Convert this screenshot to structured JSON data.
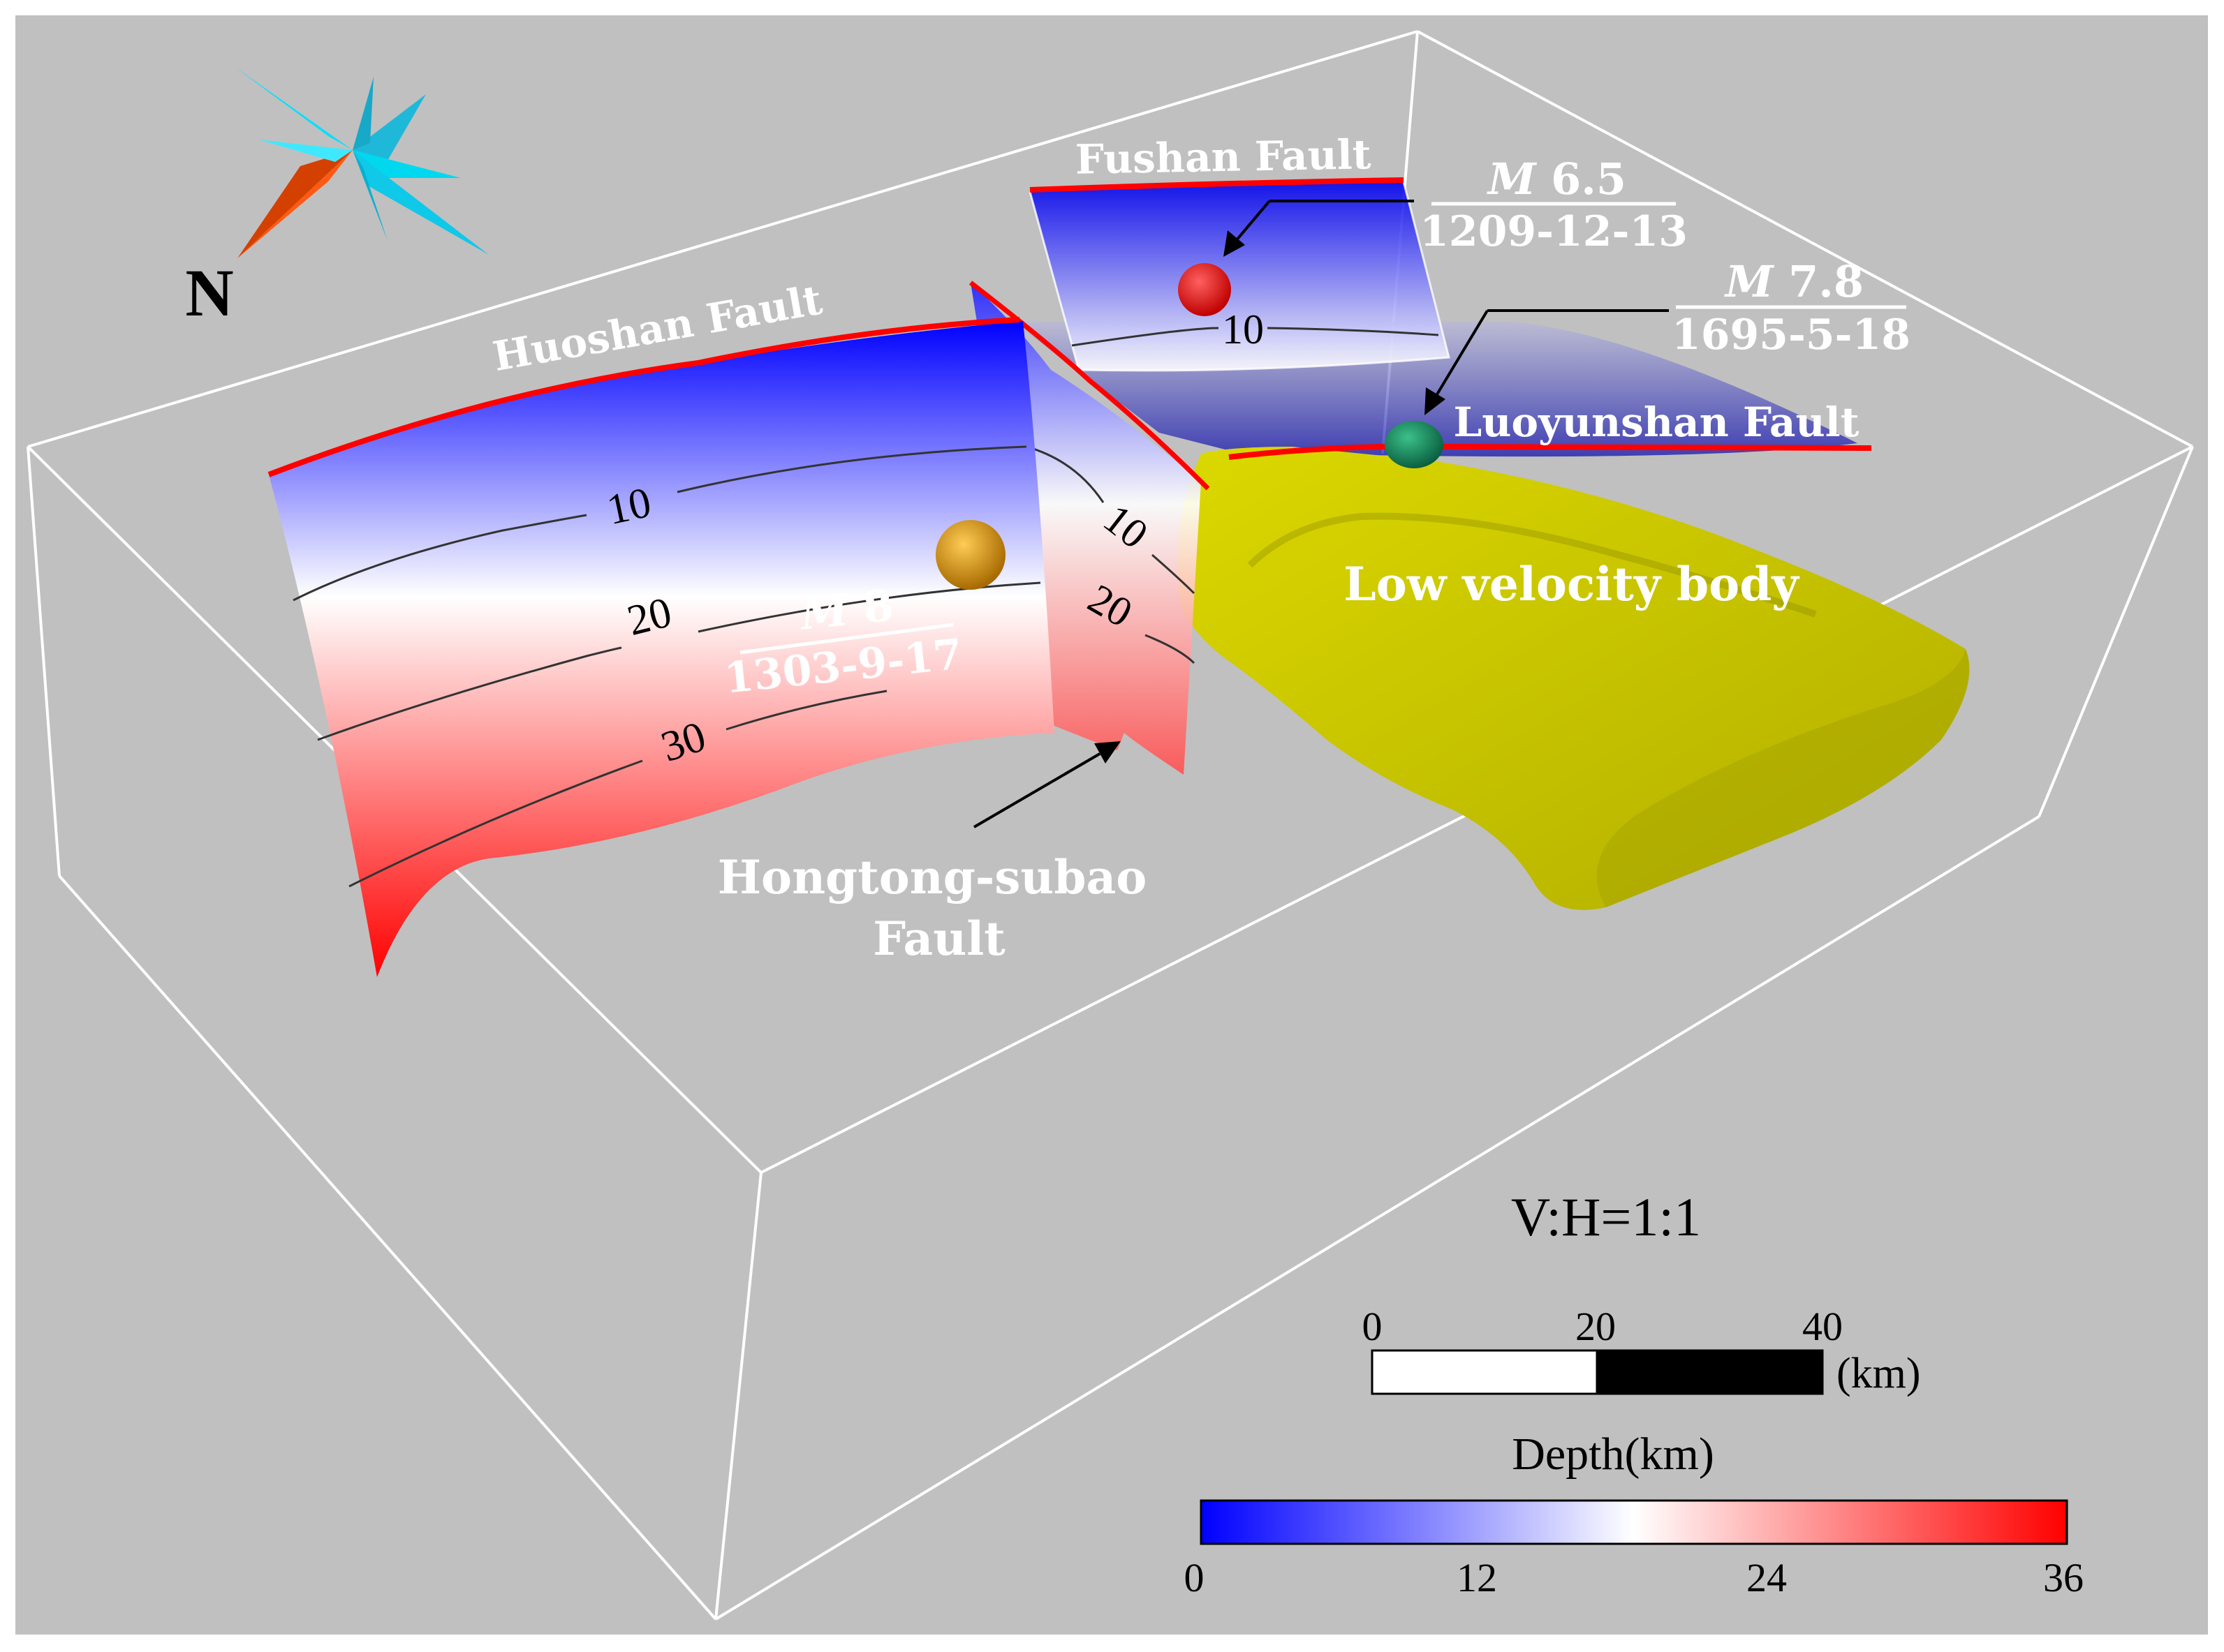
{
  "compass": {
    "north_label": "N"
  },
  "faults": {
    "huoshan": "Huoshan Fault",
    "fushan": "Fushan Fault",
    "luoyunshan": "Luoyunshan Fault",
    "hongtong_line1": "Hongtong-subao",
    "hongtong_line2": "Fault"
  },
  "low_velocity_body": "Low velocity body",
  "earthquakes": [
    {
      "mag_prefix": "M",
      "mag_value": "8",
      "date": "1303-9-17",
      "color": "#d4900a"
    },
    {
      "mag_prefix": "M",
      "mag_value": "6.5",
      "date": "1209-12-13",
      "color": "#e80000"
    },
    {
      "mag_prefix": "M",
      "mag_value": "7.8",
      "date": "1695-5-18",
      "color": "#0f8a5a"
    }
  ],
  "contours": {
    "huoshan_10": "10",
    "huoshan_20": "20",
    "huoshan_30": "30",
    "hongtong_10": "10",
    "hongtong_20": "20",
    "fushan_10": "10"
  },
  "scale": {
    "ratio": "V:H=1:1",
    "ticks": [
      "0",
      "20",
      "40"
    ],
    "unit": "(km)"
  },
  "colorbar": {
    "title": "Depth(km)",
    "ticks": [
      "0",
      "12",
      "24",
      "36"
    ],
    "min": 0,
    "max": 36,
    "colors": [
      "#0000ff",
      "#ffffff",
      "#ff0000"
    ]
  },
  "colors": {
    "background": "#c0c0c0",
    "fault_trace": "#ff0000",
    "box": "#ffffff",
    "low_velocity": "#c8c400"
  }
}
